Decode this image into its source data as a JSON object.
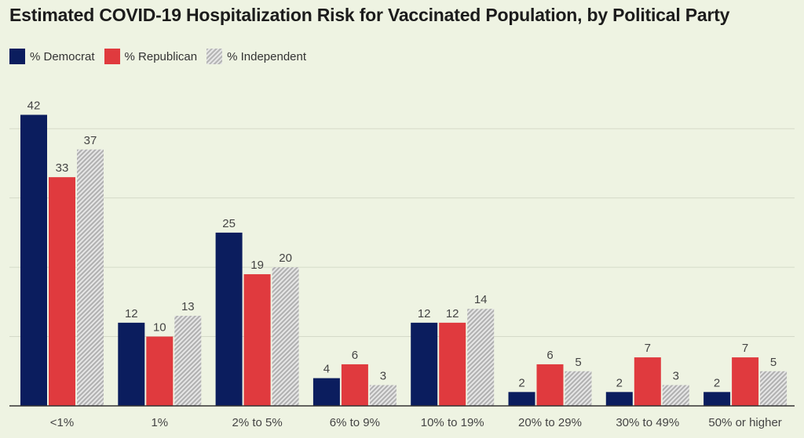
{
  "chart_data": {
    "type": "bar",
    "title": "Estimated COVID-19 Hospitalization Risk for Vaccinated Population, by Political Party",
    "xlabel": "",
    "ylabel": "",
    "ylim": [
      0,
      45
    ],
    "grid": true,
    "legend": "top-left",
    "categories": [
      "<1%",
      "1%",
      "2% to 5%",
      "6% to 9%",
      "10% to 19%",
      "20% to 29%",
      "30% to 49%",
      "50% or higher"
    ],
    "series": [
      {
        "name": "% Democrat",
        "color": "#0b1d5e",
        "values": [
          42,
          12,
          25,
          4,
          12,
          2,
          2,
          2
        ]
      },
      {
        "name": "% Republican",
        "color": "#e03a3e",
        "values": [
          33,
          10,
          19,
          6,
          12,
          6,
          7,
          7
        ]
      },
      {
        "name": "% Independent",
        "color": "#b5b5b5",
        "pattern": "hatched",
        "values": [
          37,
          13,
          20,
          3,
          14,
          5,
          3,
          5
        ]
      }
    ]
  }
}
